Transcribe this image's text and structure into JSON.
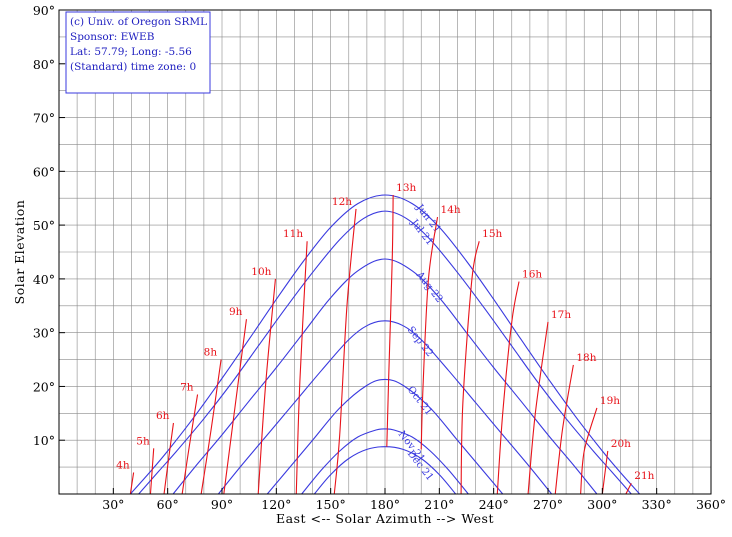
{
  "info": {
    "lines": [
      "(c) Univ. of Oregon SRML",
      "Sponsor: EWEB",
      "Lat: 57.79; Long: -5.56",
      "(Standard) time zone: 0"
    ]
  },
  "chart_data": {
    "type": "line",
    "title": "",
    "xlabel": "East <-- Solar Azimuth --> West",
    "ylabel": "Solar Elevation",
    "xlim": [
      0,
      360
    ],
    "ylim": [
      0,
      90
    ],
    "grid": true,
    "x_ticks": [
      30,
      60,
      90,
      120,
      150,
      180,
      210,
      240,
      270,
      300,
      330,
      360
    ],
    "x_tick_labels": [
      "30°",
      "60°",
      "90°",
      "120°",
      "150°",
      "180°",
      "210°",
      "240°",
      "270°",
      "300°",
      "330°",
      "360°"
    ],
    "y_ticks": [
      10,
      20,
      30,
      40,
      50,
      60,
      70,
      80,
      90
    ],
    "y_tick_labels": [
      "10°",
      "20°",
      "30°",
      "40°",
      "50°",
      "60°",
      "70°",
      "80°",
      "90°"
    ],
    "colors": {
      "date_curves": "#3a3adf",
      "hour_curves": "#e8131a",
      "grid": "#888888",
      "info_border": "#3a3adf"
    },
    "date_series": [
      {
        "name": "Jun 21",
        "peak_elevation": 55.6,
        "x": [
          39.4,
          50,
          60,
          75,
          90,
          105,
          120,
          135,
          150,
          165,
          180,
          195,
          210,
          225,
          240,
          255,
          270,
          285,
          300,
          310,
          320.6
        ],
        "y": [
          0,
          4,
          8,
          14.5,
          21.5,
          28.8,
          36.2,
          43.3,
          49.6,
          54.0,
          55.6,
          54.0,
          49.6,
          43.3,
          36.2,
          28.8,
          21.5,
          14.5,
          8,
          4,
          0
        ]
      },
      {
        "name": "Jul 21",
        "peak_elevation": 52.6,
        "x": [
          44,
          55,
          65,
          80,
          95,
          110,
          125,
          140,
          155,
          168,
          180,
          192,
          205,
          220,
          235,
          250,
          265,
          280,
          295,
          305,
          316
        ],
        "y": [
          0,
          4.2,
          8,
          14,
          20.5,
          27.5,
          34.5,
          41.2,
          47.3,
          51.2,
          52.6,
          51.2,
          47.3,
          41.2,
          34.5,
          27.5,
          20.5,
          14,
          8,
          4.2,
          0
        ]
      },
      {
        "name": "Aug 22",
        "peak_elevation": 43.7,
        "x": [
          63,
          75,
          90,
          105,
          120,
          135,
          150,
          165,
          180,
          195,
          210,
          225,
          240,
          255,
          270,
          285,
          297
        ],
        "y": [
          0,
          5,
          11,
          17.3,
          23.5,
          30,
          36.5,
          41.5,
          43.7,
          41.5,
          36.5,
          30,
          23.5,
          17.3,
          11,
          5,
          0
        ]
      },
      {
        "name": "Sep 22",
        "peak_elevation": 32.2,
        "x": [
          88,
          100,
          115,
          130,
          145,
          160,
          170,
          180,
          190,
          200,
          215,
          230,
          245,
          260,
          272
        ],
        "y": [
          0,
          5,
          11,
          17,
          23,
          28.7,
          31.3,
          32.2,
          31.3,
          28.7,
          23,
          17,
          11,
          5,
          0
        ]
      },
      {
        "name": "Oct 21",
        "peak_elevation": 21.3,
        "x": [
          115,
          125,
          140,
          155,
          170,
          180,
          190,
          205,
          220,
          235,
          245
        ],
        "y": [
          0,
          4,
          10,
          16,
          20.2,
          21.3,
          20.2,
          16,
          10,
          4,
          0
        ]
      },
      {
        "name": "Nov 21",
        "peak_elevation": 12.1,
        "x": [
          134,
          145,
          155,
          165,
          175,
          180,
          185,
          195,
          205,
          215,
          226
        ],
        "y": [
          0,
          4.5,
          8,
          10.6,
          11.9,
          12.1,
          11.9,
          10.6,
          8,
          4.5,
          0
        ]
      },
      {
        "name": "Dec 21",
        "peak_elevation": 8.8,
        "x": [
          141,
          150,
          160,
          170,
          180,
          190,
          200,
          210,
          219
        ],
        "y": [
          0,
          3.6,
          6.6,
          8.3,
          8.8,
          8.3,
          6.6,
          3.6,
          0
        ]
      }
    ],
    "hour_series": [
      {
        "name": "4h",
        "x": [
          39.4,
          41.2
        ],
        "y": [
          0,
          4
        ]
      },
      {
        "name": "5h",
        "x": [
          50.5,
          52.3
        ],
        "y": [
          0,
          8.5
        ]
      },
      {
        "name": "6h",
        "x": [
          58,
          60.5,
          63.2
        ],
        "y": [
          0,
          6.5,
          13.2
        ]
      },
      {
        "name": "7h",
        "x": [
          68,
          72,
          76.5
        ],
        "y": [
          0,
          9,
          18.5
        ]
      },
      {
        "name": "8h",
        "x": [
          78.5,
          84,
          89.5
        ],
        "y": [
          0,
          12,
          25
        ]
      },
      {
        "name": "9h",
        "x": [
          91,
          97.5,
          103.5
        ],
        "y": [
          0,
          17,
          32.5
        ]
      },
      {
        "name": "10h",
        "x": [
          110,
          114,
          119.5
        ],
        "y": [
          0,
          20,
          40
        ]
      },
      {
        "name": "11h",
        "x": [
          131,
          133,
          137
        ],
        "y": [
          0,
          21,
          47
        ]
      },
      {
        "name": "12h",
        "x": [
          152,
          155,
          159,
          164
        ],
        "y": [
          0,
          11,
          35,
          53
        ]
      },
      {
        "name": "13h",
        "x": [
          181,
          182,
          184,
          184.5
        ],
        "y": [
          8.8,
          21.3,
          43.7,
          55.6
        ]
      },
      {
        "name": "14h",
        "x": [
          200,
          201,
          204,
          209
        ],
        "y": [
          8.3,
          20,
          40,
          51.5
        ]
      },
      {
        "name": "15h",
        "x": [
          222,
          223,
          228,
          232
        ],
        "y": [
          0,
          17,
          40,
          47
        ]
      },
      {
        "name": "16h",
        "x": [
          242,
          245,
          250,
          254
        ],
        "y": [
          0,
          15,
          32,
          39.5
        ]
      },
      {
        "name": "17h",
        "x": [
          259,
          263,
          270
        ],
        "y": [
          0,
          15,
          32
        ]
      },
      {
        "name": "18h",
        "x": [
          274,
          278,
          284
        ],
        "y": [
          0,
          12,
          24
        ]
      },
      {
        "name": "19h",
        "x": [
          288,
          290,
          297
        ],
        "y": [
          0,
          8,
          16
        ]
      },
      {
        "name": "20h",
        "x": [
          300,
          303
        ],
        "y": [
          0,
          8
        ]
      },
      {
        "name": "21h",
        "x": [
          313,
          316
        ],
        "y": [
          0,
          2
        ]
      }
    ]
  }
}
